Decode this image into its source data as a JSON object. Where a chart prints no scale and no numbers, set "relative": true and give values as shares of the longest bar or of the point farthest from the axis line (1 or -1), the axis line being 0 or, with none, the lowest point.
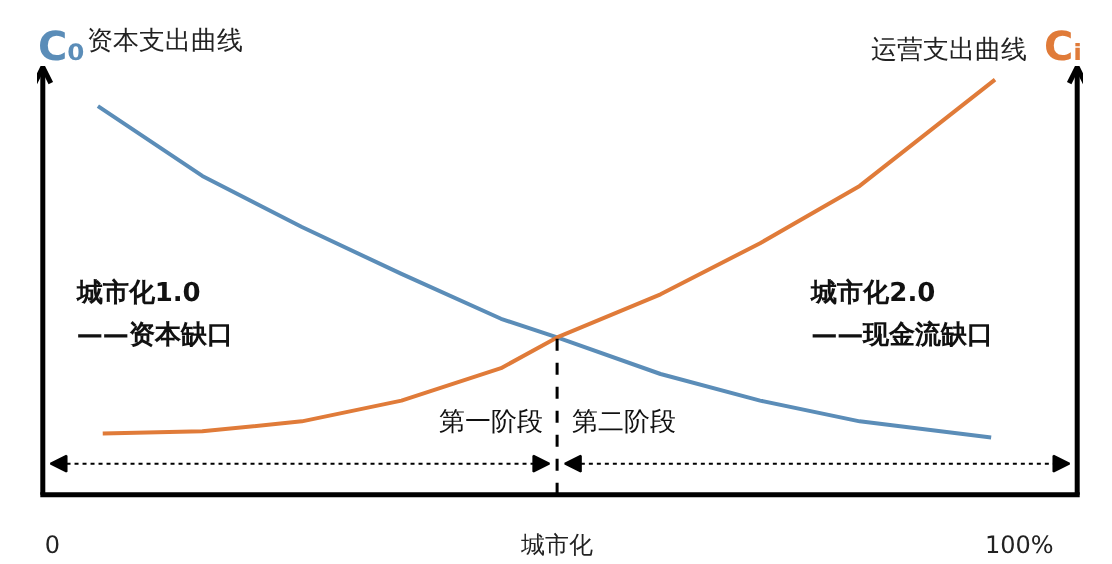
{
  "chart_data": {
    "type": "line",
    "relative": true,
    "ylabel": "C₀",
    "y2label": "Cᵢ",
    "xlim": [
      -1,
      106
    ],
    "xticks": [
      {
        "value": 0,
        "label": "0"
      },
      {
        "value": 52.2,
        "label": "城市化"
      },
      {
        "value": 100,
        "label": "100%"
      }
    ],
    "series": [
      {
        "name": "资本支出曲线",
        "color": "#5b8db8",
        "x": [
          4.7,
          15.5,
          25.8,
          36.1,
          46.4,
          52.2,
          62.9,
          73.2,
          83.5,
          97.1
        ],
        "values": [
          0.936,
          0.768,
          0.645,
          0.532,
          0.424,
          0.379,
          0.291,
          0.227,
          0.177,
          0.138
        ]
      },
      {
        "name": "运营支出曲线",
        "color": "#e07b39",
        "x": [
          5.2,
          15.5,
          25.8,
          36.1,
          46.4,
          52.2,
          62.9,
          73.2,
          83.5,
          97.5
        ],
        "values": [
          0.148,
          0.153,
          0.177,
          0.227,
          0.305,
          0.379,
          0.483,
          0.606,
          0.744,
          1.0
        ]
      }
    ],
    "ref_lines": [
      {
        "axis": "x",
        "value": 52.2,
        "line_style": "dashed",
        "color": "#000000"
      }
    ],
    "annotations": [
      "城市化1.0\n——资本缺口",
      "城市化2.0\n——现金流缺口",
      "第一阶段",
      "第二阶段"
    ],
    "grid": false,
    "marker": "none",
    "line_style": "solid"
  }
}
